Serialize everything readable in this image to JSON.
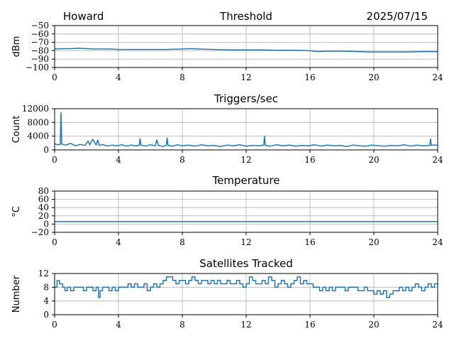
{
  "header": {
    "station": "Howard",
    "date": "2025/07/15"
  },
  "colors": {
    "series": "#1f77b4",
    "grid": "#b0b0b0"
  },
  "chart_data": [
    {
      "type": "line",
      "title": "Threshold",
      "ylabel": "dBm",
      "xlim": [
        0,
        24
      ],
      "ylim": [
        -100,
        -50
      ],
      "xticks": [
        0,
        4,
        8,
        12,
        16,
        20,
        24
      ],
      "yticks": [
        -100,
        -90,
        -80,
        -70,
        -60,
        -50
      ],
      "ytick_labels": [
        "−100",
        "−90",
        "−80",
        "−70",
        "−60",
        "−50"
      ],
      "grid": true,
      "series": [
        {
          "x": [
            0,
            0.5,
            1,
            1.5,
            2,
            2.5,
            3,
            3.5,
            4,
            5,
            6,
            7,
            8,
            8.5,
            9,
            10,
            11,
            12,
            13,
            14,
            15,
            16,
            16.5,
            17,
            18,
            19,
            20,
            21,
            22,
            23,
            24
          ],
          "values": [
            -78,
            -77.5,
            -77.5,
            -77,
            -77.5,
            -78,
            -78,
            -78,
            -78.5,
            -78.5,
            -78.5,
            -78.5,
            -78,
            -77.5,
            -78,
            -78.5,
            -79,
            -79,
            -79,
            -79.5,
            -79.5,
            -80,
            -81,
            -80.5,
            -80.5,
            -81,
            -81.5,
            -81.5,
            -81.5,
            -81,
            -81
          ]
        }
      ]
    },
    {
      "type": "line",
      "title": "Triggers/sec",
      "ylabel": "Count",
      "xlim": [
        0,
        24
      ],
      "ylim": [
        0,
        12000
      ],
      "xticks": [
        0,
        4,
        8,
        12,
        16,
        20,
        24
      ],
      "yticks": [
        0,
        4000,
        8000,
        12000
      ],
      "ytick_labels": [
        "0",
        "4000",
        "8000",
        "12000"
      ],
      "grid": true,
      "series": [
        {
          "x": [
            0,
            0.2,
            0.35,
            0.4,
            0.45,
            0.7,
            1.0,
            1.3,
            1.6,
            1.9,
            2.1,
            2.2,
            2.4,
            2.6,
            2.7,
            2.8,
            3.0,
            3.3,
            3.6,
            3.9,
            4.2,
            4.5,
            4.8,
            5.1,
            5.3,
            5.35,
            5.4,
            5.7,
            6.0,
            6.3,
            6.4,
            6.5,
            6.8,
            7.0,
            7.05,
            7.1,
            7.4,
            7.7,
            8.0,
            8.4,
            8.8,
            9.2,
            9.6,
            10.0,
            10.4,
            10.8,
            11.2,
            11.6,
            12.0,
            12.4,
            12.8,
            13.1,
            13.15,
            13.2,
            13.5,
            13.9,
            14.3,
            14.7,
            15.1,
            15.5,
            15.9,
            16.3,
            16.7,
            17.1,
            17.5,
            17.9,
            18.3,
            18.7,
            19.1,
            19.5,
            19.9,
            20.3,
            20.7,
            21.1,
            21.5,
            21.9,
            22.3,
            22.7,
            23.1,
            23.5,
            23.55,
            23.6,
            23.8,
            24
          ],
          "values": [
            1800,
            1500,
            1600,
            10800,
            1700,
            1400,
            1900,
            1200,
            1600,
            1300,
            2600,
            1500,
            3100,
            1400,
            2900,
            1300,
            1600,
            1100,
            1400,
            1200,
            1500,
            1100,
            1400,
            1200,
            1300,
            3300,
            1400,
            1100,
            1500,
            1200,
            2900,
            1300,
            1000,
            1400,
            3500,
            1300,
            1100,
            1500,
            1200,
            1400,
            1100,
            1500,
            1200,
            1300,
            1000,
            1400,
            1200,
            1500,
            1100,
            1300,
            1200,
            1400,
            4000,
            1300,
            1100,
            1500,
            1200,
            1400,
            1100,
            1300,
            1200,
            1500,
            1100,
            1400,
            1200,
            1300,
            1000,
            1400,
            1200,
            1100,
            1400,
            1200,
            1100,
            1300,
            1200,
            1500,
            1100,
            1400,
            1200,
            1300,
            3200,
            1300,
            1500,
            1300
          ]
        }
      ]
    },
    {
      "type": "line",
      "title": "Temperature",
      "ylabel": "°C",
      "xlim": [
        0,
        24
      ],
      "ylim": [
        -20,
        80
      ],
      "xticks": [
        0,
        4,
        8,
        12,
        16,
        20,
        24
      ],
      "yticks": [
        -20,
        0,
        20,
        40,
        60,
        80
      ],
      "ytick_labels": [
        "−20",
        "0",
        "20",
        "40",
        "60",
        "80"
      ],
      "grid": true,
      "series": [
        {
          "x": [
            0,
            24
          ],
          "values": [
            6,
            6
          ]
        }
      ]
    },
    {
      "type": "line",
      "title": "Satellites Tracked",
      "ylabel": "Number",
      "xlim": [
        0,
        24
      ],
      "ylim": [
        0,
        12
      ],
      "xticks": [
        0,
        4,
        8,
        12,
        16,
        20,
        24
      ],
      "yticks": [
        0,
        4,
        8,
        12
      ],
      "ytick_labels": [
        "0",
        "4",
        "8",
        "12"
      ],
      "grid": true,
      "series": [
        {
          "step": true,
          "x": [
            0,
            0.15,
            0.3,
            0.5,
            0.65,
            0.8,
            1.0,
            1.2,
            1.4,
            1.6,
            1.8,
            2.0,
            2.2,
            2.4,
            2.6,
            2.75,
            2.85,
            3.0,
            3.2,
            3.4,
            3.6,
            3.8,
            4.0,
            4.2,
            4.4,
            4.6,
            4.8,
            5.0,
            5.2,
            5.4,
            5.6,
            5.8,
            6.0,
            6.2,
            6.4,
            6.6,
            6.8,
            7.0,
            7.2,
            7.4,
            7.6,
            7.8,
            8.0,
            8.2,
            8.4,
            8.6,
            8.8,
            9.0,
            9.2,
            9.4,
            9.6,
            9.8,
            10.0,
            10.2,
            10.4,
            10.6,
            10.8,
            11.0,
            11.2,
            11.4,
            11.6,
            11.8,
            12.0,
            12.2,
            12.4,
            12.6,
            12.8,
            13.0,
            13.2,
            13.4,
            13.6,
            13.8,
            14.0,
            14.2,
            14.4,
            14.6,
            14.8,
            15.0,
            15.2,
            15.4,
            15.6,
            15.8,
            16.0,
            16.2,
            16.4,
            16.6,
            16.8,
            17.0,
            17.2,
            17.4,
            17.6,
            17.8,
            18.0,
            18.2,
            18.4,
            18.6,
            18.8,
            19.0,
            19.2,
            19.4,
            19.6,
            19.8,
            20.0,
            20.2,
            20.4,
            20.6,
            20.8,
            21.0,
            21.2,
            21.4,
            21.6,
            21.8,
            22.0,
            22.2,
            22.4,
            22.6,
            22.8,
            23.0,
            23.2,
            23.4,
            23.6,
            23.8,
            24
          ],
          "values": [
            8,
            10,
            9,
            8,
            7,
            8,
            7,
            8,
            8,
            8,
            7,
            8,
            8,
            7,
            8,
            5,
            7,
            8,
            8,
            7,
            8,
            7,
            8,
            8,
            8,
            9,
            8,
            9,
            8,
            8,
            9,
            7,
            8,
            9,
            8,
            9,
            10,
            11,
            11,
            10,
            9,
            10,
            10,
            9,
            10,
            11,
            10,
            9,
            10,
            10,
            9,
            10,
            9,
            10,
            9,
            9,
            10,
            9,
            9,
            10,
            9,
            8,
            9,
            11,
            10,
            9,
            9,
            10,
            9,
            11,
            10,
            8,
            9,
            10,
            9,
            8,
            9,
            10,
            11,
            9,
            10,
            9,
            9,
            8,
            8,
            7,
            8,
            7,
            8,
            7,
            8,
            8,
            8,
            7,
            8,
            8,
            8,
            7,
            7,
            8,
            7,
            7,
            6,
            7,
            6,
            7,
            5,
            6,
            7,
            7,
            8,
            7,
            8,
            7,
            8,
            9,
            8,
            7,
            8,
            9,
            8,
            9,
            9
          ]
        }
      ]
    }
  ]
}
